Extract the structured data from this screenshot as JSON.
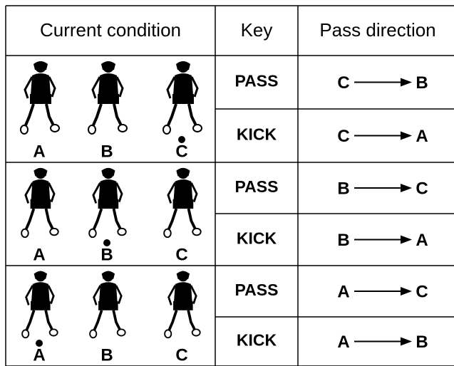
{
  "header": {
    "columns": [
      "Current condition",
      "Key",
      "Pass direction"
    ]
  },
  "groups": [
    {
      "players": [
        "A",
        "B",
        "C"
      ],
      "rows": [
        {
          "key": "PASS",
          "from": "C",
          "to": "B"
        },
        {
          "key": "KICK",
          "from": "C",
          "to": "A"
        }
      ]
    },
    {
      "players": [
        "A",
        "B",
        "C"
      ],
      "rows": [
        {
          "key": "PASS",
          "from": "B",
          "to": "C"
        },
        {
          "key": "KICK",
          "from": "B",
          "to": "A"
        }
      ]
    },
    {
      "players": [
        "A",
        "B",
        "C"
      ],
      "rows": [
        {
          "key": "PASS",
          "from": "A",
          "to": "C"
        },
        {
          "key": "KICK",
          "from": "A",
          "to": "B"
        }
      ]
    }
  ]
}
